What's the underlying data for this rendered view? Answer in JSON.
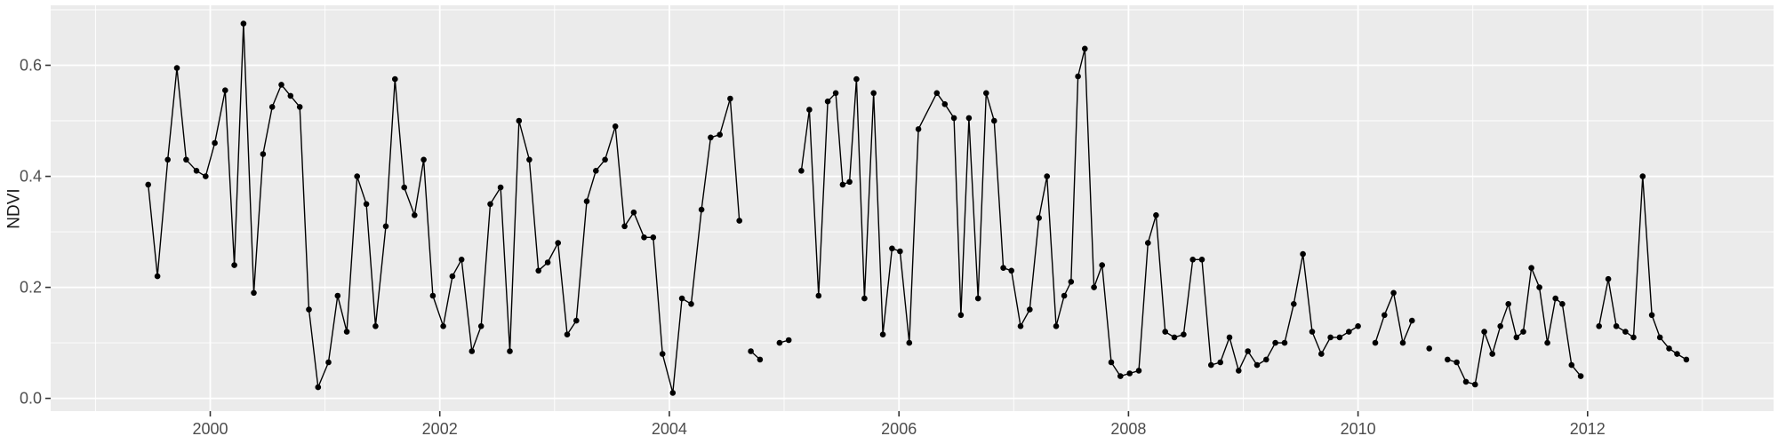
{
  "chart_data": {
    "type": "line",
    "title": "",
    "xlabel": "",
    "ylabel": "NDVI",
    "xlim": [
      1998.61,
      2013.62
    ],
    "ylim": [
      -0.023,
      0.708
    ],
    "grid": true,
    "legend": "none",
    "x_major_ticks": [
      {
        "value": 2000,
        "label": "2000"
      },
      {
        "value": 2002,
        "label": "2002"
      },
      {
        "value": 2004,
        "label": "2004"
      },
      {
        "value": 2006,
        "label": "2006"
      },
      {
        "value": 2008,
        "label": "2008"
      },
      {
        "value": 2010,
        "label": "2010"
      },
      {
        "value": 2012,
        "label": "2012"
      }
    ],
    "x_minor_ticks": [
      1999,
      2001,
      2003,
      2005,
      2007,
      2009,
      2011,
      2013
    ],
    "y_major_ticks": [
      {
        "value": 0.0,
        "label": "0.0"
      },
      {
        "value": 0.2,
        "label": "0.2"
      },
      {
        "value": 0.4,
        "label": "0.4"
      },
      {
        "value": 0.6,
        "label": "0.6"
      }
    ],
    "y_minor_ticks": [
      0.1,
      0.3,
      0.5,
      0.7
    ],
    "style": {
      "plot_bg": "#FFFFFF",
      "panel_bg": "#EBEBEB",
      "grid_major": "#FFFFFF",
      "grid_minor": "#FFFFFF",
      "axis_text": "#4D4D4D",
      "tick_mark": "#333333",
      "line_color": "#000000",
      "point_color": "#000000"
    },
    "series": [
      {
        "name": "NDVI",
        "marker": "point",
        "segments": [
          [
            [
              1999.46,
              0.385
            ],
            [
              1999.54,
              0.22
            ],
            [
              1999.63,
              0.43
            ],
            [
              1999.71,
              0.595
            ],
            [
              1999.79,
              0.43
            ],
            [
              1999.88,
              0.41
            ],
            [
              1999.96,
              0.4
            ],
            [
              2000.04,
              0.46
            ],
            [
              2000.13,
              0.555
            ],
            [
              2000.21,
              0.24
            ],
            [
              2000.29,
              0.675
            ],
            [
              2000.38,
              0.19
            ],
            [
              2000.46,
              0.44
            ],
            [
              2000.54,
              0.525
            ],
            [
              2000.62,
              0.565
            ],
            [
              2000.7,
              0.545
            ],
            [
              2000.78,
              0.525
            ],
            [
              2000.86,
              0.16
            ],
            [
              2000.94,
              0.02
            ],
            [
              2001.03,
              0.065
            ],
            [
              2001.11,
              0.185
            ],
            [
              2001.19,
              0.12
            ],
            [
              2001.28,
              0.4
            ],
            [
              2001.36,
              0.35
            ],
            [
              2001.44,
              0.13
            ],
            [
              2001.53,
              0.31
            ],
            [
              2001.61,
              0.575
            ],
            [
              2001.69,
              0.38
            ],
            [
              2001.78,
              0.33
            ],
            [
              2001.86,
              0.43
            ],
            [
              2001.94,
              0.185
            ],
            [
              2002.03,
              0.13
            ],
            [
              2002.11,
              0.22
            ],
            [
              2002.19,
              0.25
            ],
            [
              2002.28,
              0.085
            ],
            [
              2002.36,
              0.13
            ],
            [
              2002.44,
              0.35
            ],
            [
              2002.53,
              0.38
            ],
            [
              2002.61,
              0.085
            ],
            [
              2002.69,
              0.5
            ],
            [
              2002.78,
              0.43
            ],
            [
              2002.86,
              0.23
            ],
            [
              2002.94,
              0.245
            ],
            [
              2003.03,
              0.28
            ],
            [
              2003.11,
              0.115
            ],
            [
              2003.19,
              0.14
            ],
            [
              2003.28,
              0.355
            ],
            [
              2003.36,
              0.41
            ],
            [
              2003.44,
              0.43
            ],
            [
              2003.53,
              0.49
            ],
            [
              2003.61,
              0.31
            ],
            [
              2003.69,
              0.335
            ],
            [
              2003.78,
              0.29
            ],
            [
              2003.86,
              0.29
            ],
            [
              2003.94,
              0.08
            ],
            [
              2004.03,
              0.01
            ],
            [
              2004.11,
              0.18
            ],
            [
              2004.19,
              0.17
            ],
            [
              2004.28,
              0.34
            ],
            [
              2004.36,
              0.47
            ],
            [
              2004.44,
              0.475
            ],
            [
              2004.53,
              0.54
            ],
            [
              2004.61,
              0.32
            ]
          ],
          [
            [
              2004.71,
              0.085
            ],
            [
              2004.79,
              0.07
            ]
          ],
          [
            [
              2004.96,
              0.1
            ],
            [
              2005.04,
              0.105
            ]
          ],
          [
            [
              2005.15,
              0.41
            ],
            [
              2005.22,
              0.52
            ],
            [
              2005.3,
              0.185
            ],
            [
              2005.38,
              0.535
            ],
            [
              2005.45,
              0.55
            ],
            [
              2005.51,
              0.385
            ],
            [
              2005.57,
              0.39
            ],
            [
              2005.63,
              0.575
            ],
            [
              2005.7,
              0.18
            ],
            [
              2005.78,
              0.55
            ],
            [
              2005.86,
              0.115
            ],
            [
              2005.94,
              0.27
            ],
            [
              2006.01,
              0.265
            ],
            [
              2006.09,
              0.1
            ],
            [
              2006.17,
              0.485
            ],
            [
              2006.33,
              0.55
            ],
            [
              2006.4,
              0.53
            ],
            [
              2006.48,
              0.505
            ],
            [
              2006.54,
              0.15
            ],
            [
              2006.61,
              0.505
            ],
            [
              2006.69,
              0.18
            ],
            [
              2006.76,
              0.55
            ],
            [
              2006.83,
              0.5
            ],
            [
              2006.91,
              0.235
            ],
            [
              2006.98,
              0.23
            ],
            [
              2007.06,
              0.13
            ],
            [
              2007.14,
              0.16
            ],
            [
              2007.22,
              0.325
            ],
            [
              2007.29,
              0.4
            ],
            [
              2007.37,
              0.13
            ],
            [
              2007.44,
              0.185
            ],
            [
              2007.5,
              0.21
            ],
            [
              2007.56,
              0.58
            ],
            [
              2007.62,
              0.63
            ],
            [
              2007.7,
              0.2
            ],
            [
              2007.77,
              0.24
            ],
            [
              2007.85,
              0.065
            ],
            [
              2007.93,
              0.04
            ],
            [
              2008.01,
              0.045
            ],
            [
              2008.09,
              0.05
            ],
            [
              2008.17,
              0.28
            ],
            [
              2008.24,
              0.33
            ],
            [
              2008.32,
              0.12
            ],
            [
              2008.4,
              0.11
            ],
            [
              2008.48,
              0.115
            ],
            [
              2008.56,
              0.25
            ],
            [
              2008.64,
              0.25
            ],
            [
              2008.72,
              0.06
            ],
            [
              2008.8,
              0.065
            ],
            [
              2008.88,
              0.11
            ],
            [
              2008.96,
              0.05
            ],
            [
              2009.04,
              0.085
            ],
            [
              2009.12,
              0.06
            ],
            [
              2009.2,
              0.07
            ],
            [
              2009.28,
              0.1
            ],
            [
              2009.36,
              0.1
            ],
            [
              2009.44,
              0.17
            ],
            [
              2009.52,
              0.26
            ],
            [
              2009.6,
              0.12
            ],
            [
              2009.68,
              0.08
            ],
            [
              2009.76,
              0.11
            ],
            [
              2009.84,
              0.11
            ],
            [
              2009.92,
              0.12
            ],
            [
              2010.0,
              0.13
            ]
          ],
          [
            [
              2010.15,
              0.1
            ],
            [
              2010.23,
              0.15
            ],
            [
              2010.31,
              0.19
            ],
            [
              2010.39,
              0.1
            ],
            [
              2010.47,
              0.14
            ]
          ],
          [
            [
              2010.62,
              0.09
            ]
          ],
          [
            [
              2010.78,
              0.07
            ],
            [
              2010.86,
              0.065
            ],
            [
              2010.94,
              0.03
            ],
            [
              2011.02,
              0.025
            ],
            [
              2011.1,
              0.12
            ],
            [
              2011.17,
              0.08
            ],
            [
              2011.24,
              0.13
            ],
            [
              2011.31,
              0.17
            ],
            [
              2011.38,
              0.11
            ],
            [
              2011.44,
              0.12
            ],
            [
              2011.51,
              0.235
            ],
            [
              2011.58,
              0.2
            ],
            [
              2011.65,
              0.1
            ],
            [
              2011.72,
              0.18
            ],
            [
              2011.78,
              0.17
            ],
            [
              2011.86,
              0.06
            ],
            [
              2011.94,
              0.04
            ]
          ],
          [
            [
              2012.1,
              0.13
            ],
            [
              2012.18,
              0.215
            ],
            [
              2012.25,
              0.13
            ],
            [
              2012.33,
              0.12
            ],
            [
              2012.4,
              0.11
            ],
            [
              2012.48,
              0.4
            ],
            [
              2012.56,
              0.15
            ],
            [
              2012.63,
              0.11
            ],
            [
              2012.71,
              0.09
            ],
            [
              2012.78,
              0.08
            ],
            [
              2012.86,
              0.07
            ]
          ]
        ]
      }
    ]
  }
}
